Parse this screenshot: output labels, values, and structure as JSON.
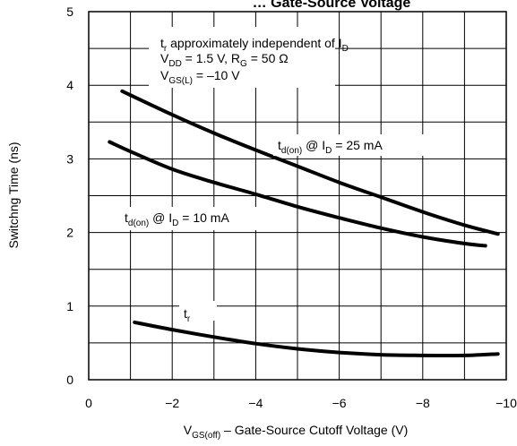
{
  "chart_data": {
    "type": "line",
    "title": "… Gate-Source Voltage",
    "xlabel": {
      "main": "V",
      "sub": "GS(off)",
      "rest": " – Gate-Source Cutoff Voltage (V)"
    },
    "ylabel": "Switchng Time (ns)",
    "xlim": [
      0,
      -10
    ],
    "ylim": [
      0,
      5
    ],
    "x_ticks": [
      0,
      -2,
      -4,
      -6,
      -8,
      -10
    ],
    "x_tick_labels": [
      "0",
      "−2",
      "−4",
      "−6",
      "−8",
      "−10"
    ],
    "y_ticks": [
      0,
      1,
      2,
      3,
      4,
      5
    ],
    "y_tick_labels": [
      "0",
      "1",
      "2",
      "3",
      "4",
      "5"
    ],
    "x_gridlines": [
      -1,
      -2,
      -3,
      -4,
      -5,
      -6,
      -7,
      -8,
      -9
    ],
    "y_gridlines": [
      0.5,
      1,
      1.5,
      2,
      2.5,
      3,
      3.5,
      4,
      4.5
    ],
    "series": [
      {
        "key": "td_on_25",
        "x": [
          -0.8,
          -2,
          -3,
          -4,
          -5,
          -6,
          -7,
          -8,
          -9,
          -9.8
        ],
        "y": [
          3.92,
          3.6,
          3.35,
          3.12,
          2.9,
          2.68,
          2.48,
          2.28,
          2.1,
          1.98
        ]
      },
      {
        "key": "td_on_10",
        "x": [
          -0.5,
          -1,
          -2,
          -3,
          -4,
          -5,
          -6,
          -7,
          -8,
          -9,
          -9.5
        ],
        "y": [
          3.23,
          3.1,
          2.86,
          2.68,
          2.52,
          2.35,
          2.2,
          2.06,
          1.94,
          1.85,
          1.82
        ]
      },
      {
        "key": "tr",
        "x": [
          -1.1,
          -2,
          -3,
          -4,
          -5,
          -6,
          -7,
          -8,
          -9,
          -9.8
        ],
        "y": [
          0.78,
          0.68,
          0.58,
          0.49,
          0.42,
          0.37,
          0.34,
          0.33,
          0.33,
          0.35
        ]
      }
    ],
    "annotations": {
      "info_line1": {
        "pre": "t",
        "sub": "r",
        "post": " approximately independent of I",
        "sub2": "D"
      },
      "info_line2": {
        "pre": "V",
        "sub": "DD",
        "post": " = 1.5 V, R",
        "sub2": "G",
        "post2": " = 50 Ω"
      },
      "info_line3": {
        "pre": "V",
        "sub": "GS(L)",
        "post": " = –10 V"
      },
      "label_25": {
        "pre": "t",
        "sub": "d(on)",
        "post": " @ I",
        "sub2": "D",
        "post2": " = 25 mA"
      },
      "label_10": {
        "pre": "t",
        "sub": "d(on)",
        "post": " @ I",
        "sub2": "D",
        "post2": " = 10 mA"
      },
      "label_tr": {
        "pre": "t",
        "sub": "r"
      }
    },
    "colors": {
      "line": "#000000",
      "grid": "#000000",
      "background": "#ffffff"
    }
  }
}
